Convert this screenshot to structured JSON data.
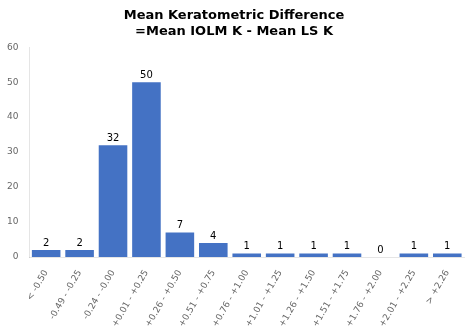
{
  "chart_data": {
    "type": "bar",
    "title": "Mean Keratometric Difference\n=Mean IOLM K - Mean LS K",
    "categories": [
      "< -0.50",
      "-0.49 - -0.25",
      "-0.24 - -0.00",
      "+0.01 - +0.25",
      "+0.26 - +0.50",
      "+0.51 - +0.75",
      "+0.76 - +1.00",
      "+1.01 - +1.25",
      "+1.26 - +1.50",
      "+1.51 - +1.75",
      "+1.76 - +2.00",
      "+2.01 - +2.25",
      "> +2.26"
    ],
    "values": [
      2,
      2,
      32,
      50,
      7,
      4,
      1,
      1,
      1,
      1,
      0,
      1,
      1
    ],
    "color": "#4472C4",
    "ylim": [
      0,
      60
    ],
    "yticks": [
      0,
      10,
      20,
      30,
      40,
      50,
      60
    ],
    "grid": false,
    "data_labels": true
  }
}
